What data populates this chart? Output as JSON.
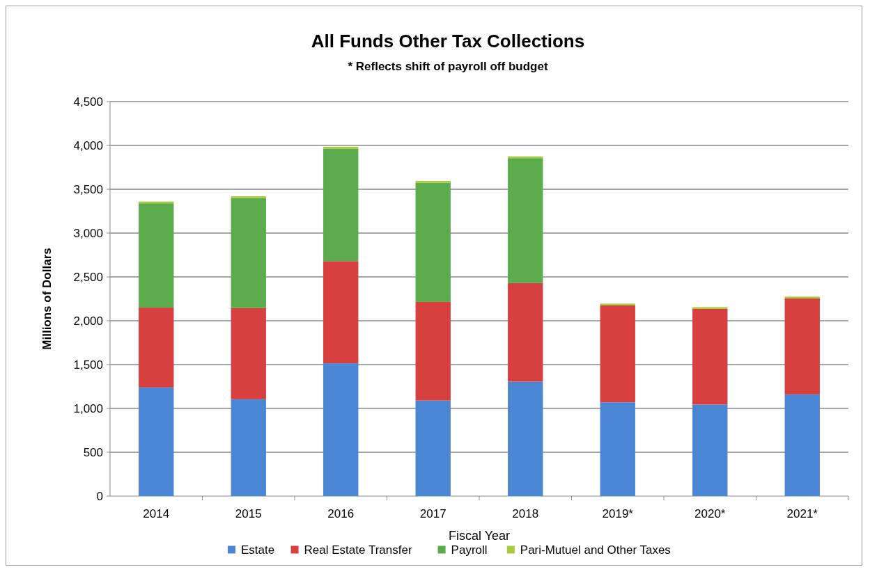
{
  "chart_data": {
    "type": "bar",
    "stacked": true,
    "title": "All Funds Other Tax Collections",
    "subtitle": "* Reflects shift of payroll off budget",
    "xlabel": "Fiscal Year",
    "ylabel": "Millions of Dollars",
    "categories": [
      "2014",
      "2015",
      "2016",
      "2017",
      "2018",
      "2019*",
      "2020*",
      "2021*"
    ],
    "series": [
      {
        "name": "Estate",
        "color": "#4a86d4",
        "values": [
          1240,
          1105,
          1515,
          1090,
          1305,
          1070,
          1045,
          1160
        ]
      },
      {
        "name": "Real Estate Transfer",
        "color": "#d84040",
        "values": [
          910,
          1040,
          1165,
          1125,
          1125,
          1105,
          1090,
          1095
        ]
      },
      {
        "name": "Payroll",
        "color": "#5cab4c",
        "values": [
          1190,
          1255,
          1285,
          1360,
          1425,
          0,
          0,
          0
        ]
      },
      {
        "name": "Pari-Mutuel and Other Taxes",
        "color": "#a8cc3c",
        "values": [
          20,
          20,
          20,
          20,
          20,
          20,
          20,
          20
        ]
      }
    ],
    "ylim": [
      0,
      4500
    ],
    "yticks": [
      0,
      500,
      {
        "value": 1000,
        "label": "1,000"
      },
      {
        "value": 1500,
        "label": "1,500"
      },
      {
        "value": 2000,
        "label": "2,000"
      },
      {
        "value": 2500,
        "label": "2,500"
      },
      {
        "value": 3000,
        "label": "3,000"
      },
      {
        "value": 3500,
        "label": "3,500"
      },
      {
        "value": 4000,
        "label": "4,000"
      },
      {
        "value": 4500,
        "label": "4,500"
      }
    ],
    "grid": "y",
    "legend": "bottom"
  }
}
